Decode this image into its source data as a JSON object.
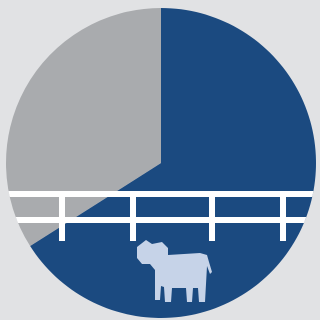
{
  "chart_data": {
    "type": "pie",
    "categories": [
      null,
      null
    ],
    "values": [
      66,
      34
    ],
    "colors": [
      "#1b4a80",
      "#a9abae"
    ]
  }
}
